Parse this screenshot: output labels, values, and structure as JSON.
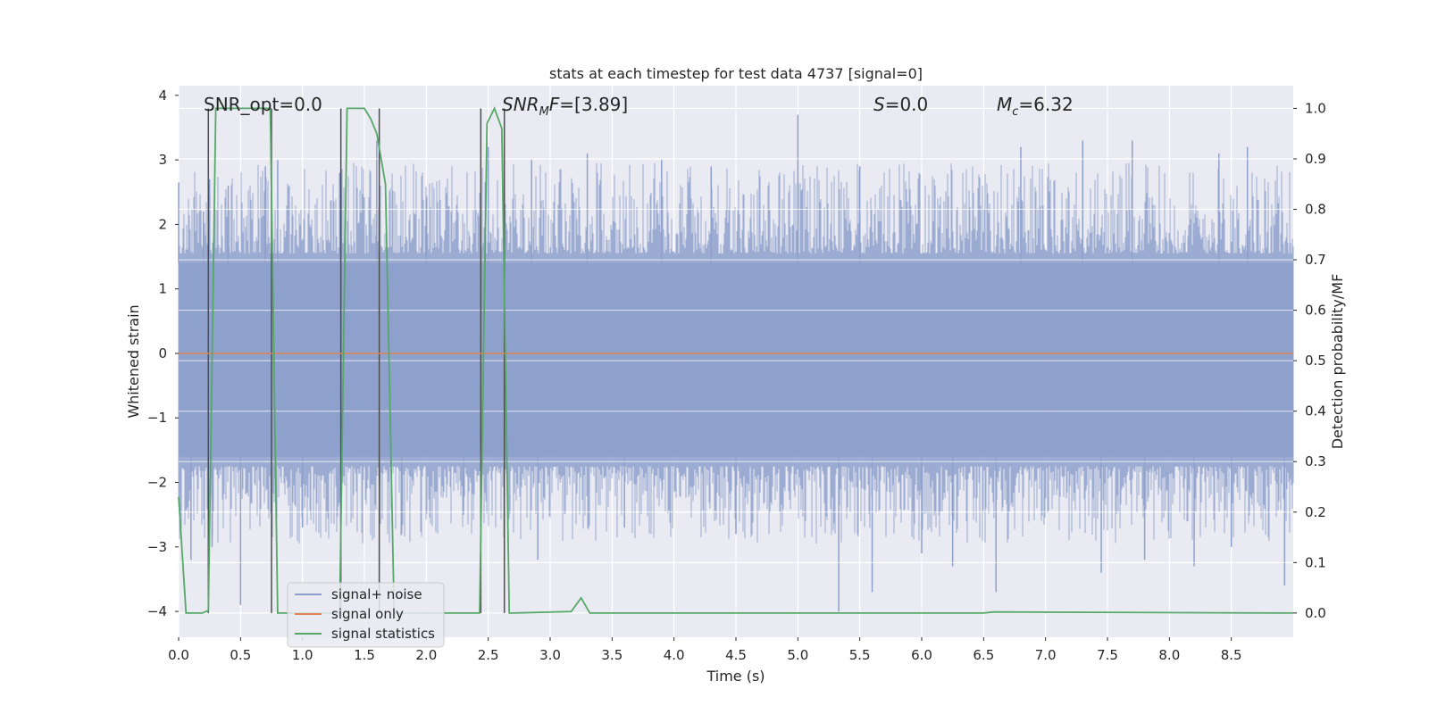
{
  "chart_data": {
    "type": "line",
    "title": "stats at each timestep for test data 4737 [signal=0]",
    "xlabel": "Time (s)",
    "ylabel_left": "Whitened strain",
    "ylabel_right": "Detection probability/MF",
    "xlim": [
      0.0,
      9.0
    ],
    "ylim_left": [
      -4.4,
      4.15
    ],
    "ylim_right": [
      -0.048,
      1.045
    ],
    "x_ticks": [
      0.0,
      0.5,
      1.0,
      1.5,
      2.0,
      2.5,
      3.0,
      3.5,
      4.0,
      4.5,
      5.0,
      5.5,
      6.0,
      6.5,
      7.0,
      7.5,
      8.0,
      8.5
    ],
    "x_tick_labels": [
      "0.0",
      "0.5",
      "1.0",
      "1.5",
      "2.0",
      "2.5",
      "3.0",
      "3.5",
      "4.0",
      "4.5",
      "5.0",
      "5.5",
      "6.0",
      "6.5",
      "7.0",
      "7.5",
      "8.0",
      "8.5"
    ],
    "y_ticks_left": [
      -4,
      -3,
      -2,
      -1,
      0,
      1,
      2,
      3,
      4
    ],
    "y_tick_labels_left": [
      "−4",
      "−3",
      "−2",
      "−1",
      "0",
      "1",
      "2",
      "3",
      "4"
    ],
    "y_ticks_right": [
      0.0,
      0.1,
      0.2,
      0.3,
      0.4,
      0.5,
      0.6,
      0.7,
      0.8,
      0.9,
      1.0
    ],
    "y_tick_labels_right": [
      "0.0",
      "0.1",
      "0.2",
      "0.3",
      "0.4",
      "0.5",
      "0.6",
      "0.7",
      "0.8",
      "0.9",
      "1.0"
    ],
    "annotations": {
      "snr_opt": "SNR_opt=0.0",
      "snr_mf_sym": "SNR",
      "snr_mf_sub": "M",
      "snr_mf_rest": "F",
      "snr_mf_value": "=[3.89]",
      "s_sym": "S",
      "s_value": "=0.0",
      "mc_sym": "M",
      "mc_sub": "c",
      "mc_value": "=6.32"
    },
    "noise_band": {
      "name": "signal+ noise",
      "color": "#8da0cb",
      "typical_range": [
        -1.6,
        1.4
      ],
      "spike_samples": [
        {
          "t": 0.0,
          "v": 2.65
        },
        {
          "t": 0.1,
          "v": -3.2
        },
        {
          "t": 0.2,
          "v": 2.2
        },
        {
          "t": 0.25,
          "v": 2.7
        },
        {
          "t": 0.27,
          "v": -3.0
        },
        {
          "t": 0.4,
          "v": 2.6
        },
        {
          "t": 0.5,
          "v": -3.9
        },
        {
          "t": 0.7,
          "v": 2.9
        },
        {
          "t": 0.8,
          "v": 3.0
        },
        {
          "t": 1.0,
          "v": -2.7
        },
        {
          "t": 1.3,
          "v": 2.8
        },
        {
          "t": 1.6,
          "v": 3.3
        },
        {
          "t": 1.8,
          "v": -2.8
        },
        {
          "t": 2.0,
          "v": 2.4
        },
        {
          "t": 2.3,
          "v": -2.5
        },
        {
          "t": 2.5,
          "v": 3.2
        },
        {
          "t": 2.85,
          "v": 3.0
        },
        {
          "t": 2.9,
          "v": -3.2
        },
        {
          "t": 3.3,
          "v": 3.1
        },
        {
          "t": 3.6,
          "v": -2.7
        },
        {
          "t": 3.9,
          "v": 3.0
        },
        {
          "t": 4.3,
          "v": 2.9
        },
        {
          "t": 4.5,
          "v": -2.8
        },
        {
          "t": 5.0,
          "v": 3.7
        },
        {
          "t": 5.33,
          "v": -4.0
        },
        {
          "t": 5.5,
          "v": 2.9
        },
        {
          "t": 5.6,
          "v": -3.7
        },
        {
          "t": 6.0,
          "v": -3.1
        },
        {
          "t": 6.25,
          "v": -3.3
        },
        {
          "t": 6.6,
          "v": -3.7
        },
        {
          "t": 6.8,
          "v": 3.2
        },
        {
          "t": 7.3,
          "v": 3.3
        },
        {
          "t": 7.45,
          "v": -3.4
        },
        {
          "t": 7.7,
          "v": 3.3
        },
        {
          "t": 7.8,
          "v": -3.2
        },
        {
          "t": 8.2,
          "v": -3.3
        },
        {
          "t": 8.4,
          "v": 3.1
        },
        {
          "t": 8.5,
          "v": -3.0
        },
        {
          "t": 8.63,
          "v": 3.2
        },
        {
          "t": 8.93,
          "v": -3.6
        }
      ]
    },
    "series": [
      {
        "name": "signal only",
        "color": "#dd8452",
        "axis": "left",
        "x": [
          0.0,
          9.0
        ],
        "y": [
          0.0,
          0.0
        ]
      },
      {
        "name": "signal statistics",
        "color": "#55a868",
        "axis": "right",
        "x": [
          0.0,
          0.06,
          0.19,
          0.24,
          0.3,
          0.7,
          0.74,
          0.8,
          1.3,
          1.36,
          1.43,
          1.5,
          1.55,
          1.6,
          1.67,
          1.74,
          2.43,
          2.49,
          2.55,
          2.61,
          2.67,
          2.7,
          3.17,
          3.25,
          3.32,
          6.5,
          6.58,
          9.0
        ],
        "y": [
          0.23,
          0.0,
          0.0,
          0.005,
          1.0,
          1.0,
          1.0,
          0.0,
          0.0,
          1.0,
          1.0,
          1.0,
          0.98,
          0.95,
          0.85,
          0.0,
          0.0,
          0.97,
          1.0,
          0.96,
          0.0,
          0.0,
          0.003,
          0.03,
          0.0,
          0.0,
          0.002,
          0.0
        ]
      }
    ],
    "boundary_lines": {
      "color": "#4d4d4d",
      "axis": "right",
      "times": [
        0.24,
        0.75,
        1.31,
        1.62,
        2.44,
        2.63
      ],
      "y_top": 1.0
    },
    "legend": {
      "placement": "lower-left",
      "entries": [
        {
          "label": "signal+ noise",
          "color": "#8da0cb"
        },
        {
          "label": "signal only",
          "color": "#dd8452"
        },
        {
          "label": "signal statistics",
          "color": "#55a868"
        }
      ]
    }
  }
}
